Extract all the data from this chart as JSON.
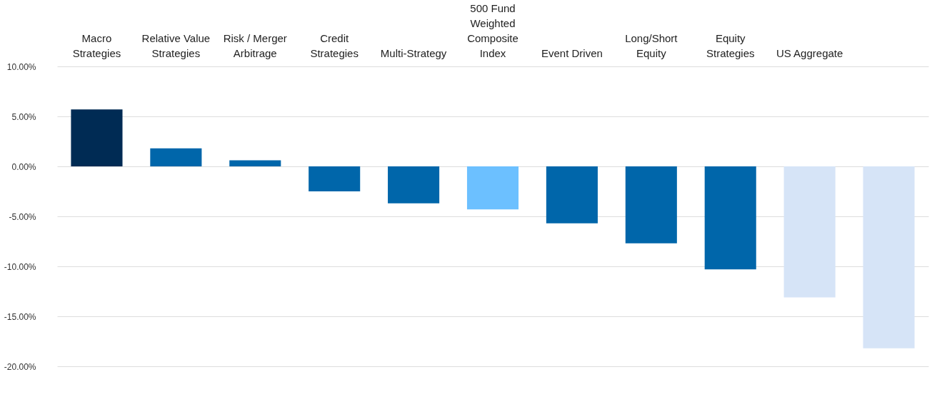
{
  "chart_data": {
    "type": "bar",
    "categories": [
      "Macro Strategies",
      "Relative Value Strategies",
      "Risk / Merger Arbitrage",
      "Credit Strategies",
      "Multi-Strategy",
      "500 Fund Weighted Composite Index",
      "Event Driven",
      "Long/Short Equity",
      "Equity Strategies",
      "US Aggregate",
      null
    ],
    "values": [
      5.7,
      1.8,
      0.6,
      -2.5,
      -3.7,
      -4.3,
      -5.7,
      -7.7,
      -10.3,
      -13.1,
      -18.2
    ],
    "colors": [
      "#002b54",
      "#0066aa",
      "#0066aa",
      "#0066aa",
      "#0066aa",
      "#6cc0ff",
      "#0066aa",
      "#0066aa",
      "#0066aa",
      "#d6e4f7",
      "#d6e4f7"
    ],
    "ylim": [
      -20,
      10
    ],
    "yticks": [
      {
        "value": -20,
        "label": "-20.00%"
      },
      {
        "value": -15,
        "label": "-15.00%"
      },
      {
        "value": -10,
        "label": "-10.00%"
      },
      {
        "value": -5,
        "label": "-5.00%"
      },
      {
        "value": 0,
        "label": "0.00%"
      },
      {
        "value": 5,
        "label": "5.00%"
      },
      {
        "value": 10,
        "label": "10.00%"
      }
    ],
    "grid": "y"
  }
}
